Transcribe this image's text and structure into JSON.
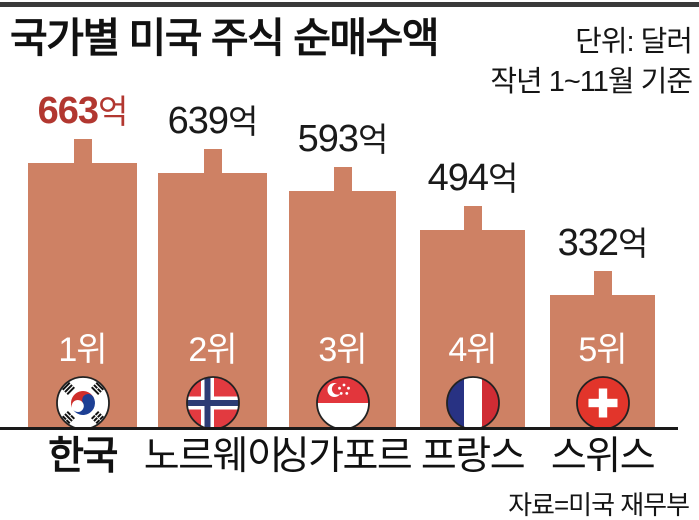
{
  "header": {
    "title": "국가별 미국 주식 순매수액",
    "unit_line1": "단위: 달러",
    "unit_line2": "작년 1~11월 기준"
  },
  "chart_data": {
    "type": "bar",
    "orientation": "vertical",
    "title": "국가별 미국 주식 순매수액",
    "unit": "달러",
    "period": "작년 1~11월 기준",
    "categories": [
      "한국",
      "노르웨이",
      "싱가포르",
      "프랑스",
      "스위스"
    ],
    "values": [
      663,
      639,
      593,
      494,
      332
    ],
    "value_texts": [
      "663",
      "639",
      "593",
      "494",
      "332"
    ],
    "value_suffix": "억",
    "rank_labels": [
      "1위",
      "2위",
      "3위",
      "4위",
      "5위"
    ],
    "flags": [
      "south-korea",
      "norway",
      "singapore",
      "france",
      "switzerland"
    ],
    "bar_color": "#ce8164",
    "highlight_index": 0,
    "highlight_value_color": "#b23730",
    "value_label_color": "#1a1a1a",
    "rank_label_color": "#ffffff",
    "ylim": [
      0,
      700
    ],
    "grid": false,
    "legend": "none"
  },
  "footer": {
    "source": "자료=미국 재무부"
  }
}
